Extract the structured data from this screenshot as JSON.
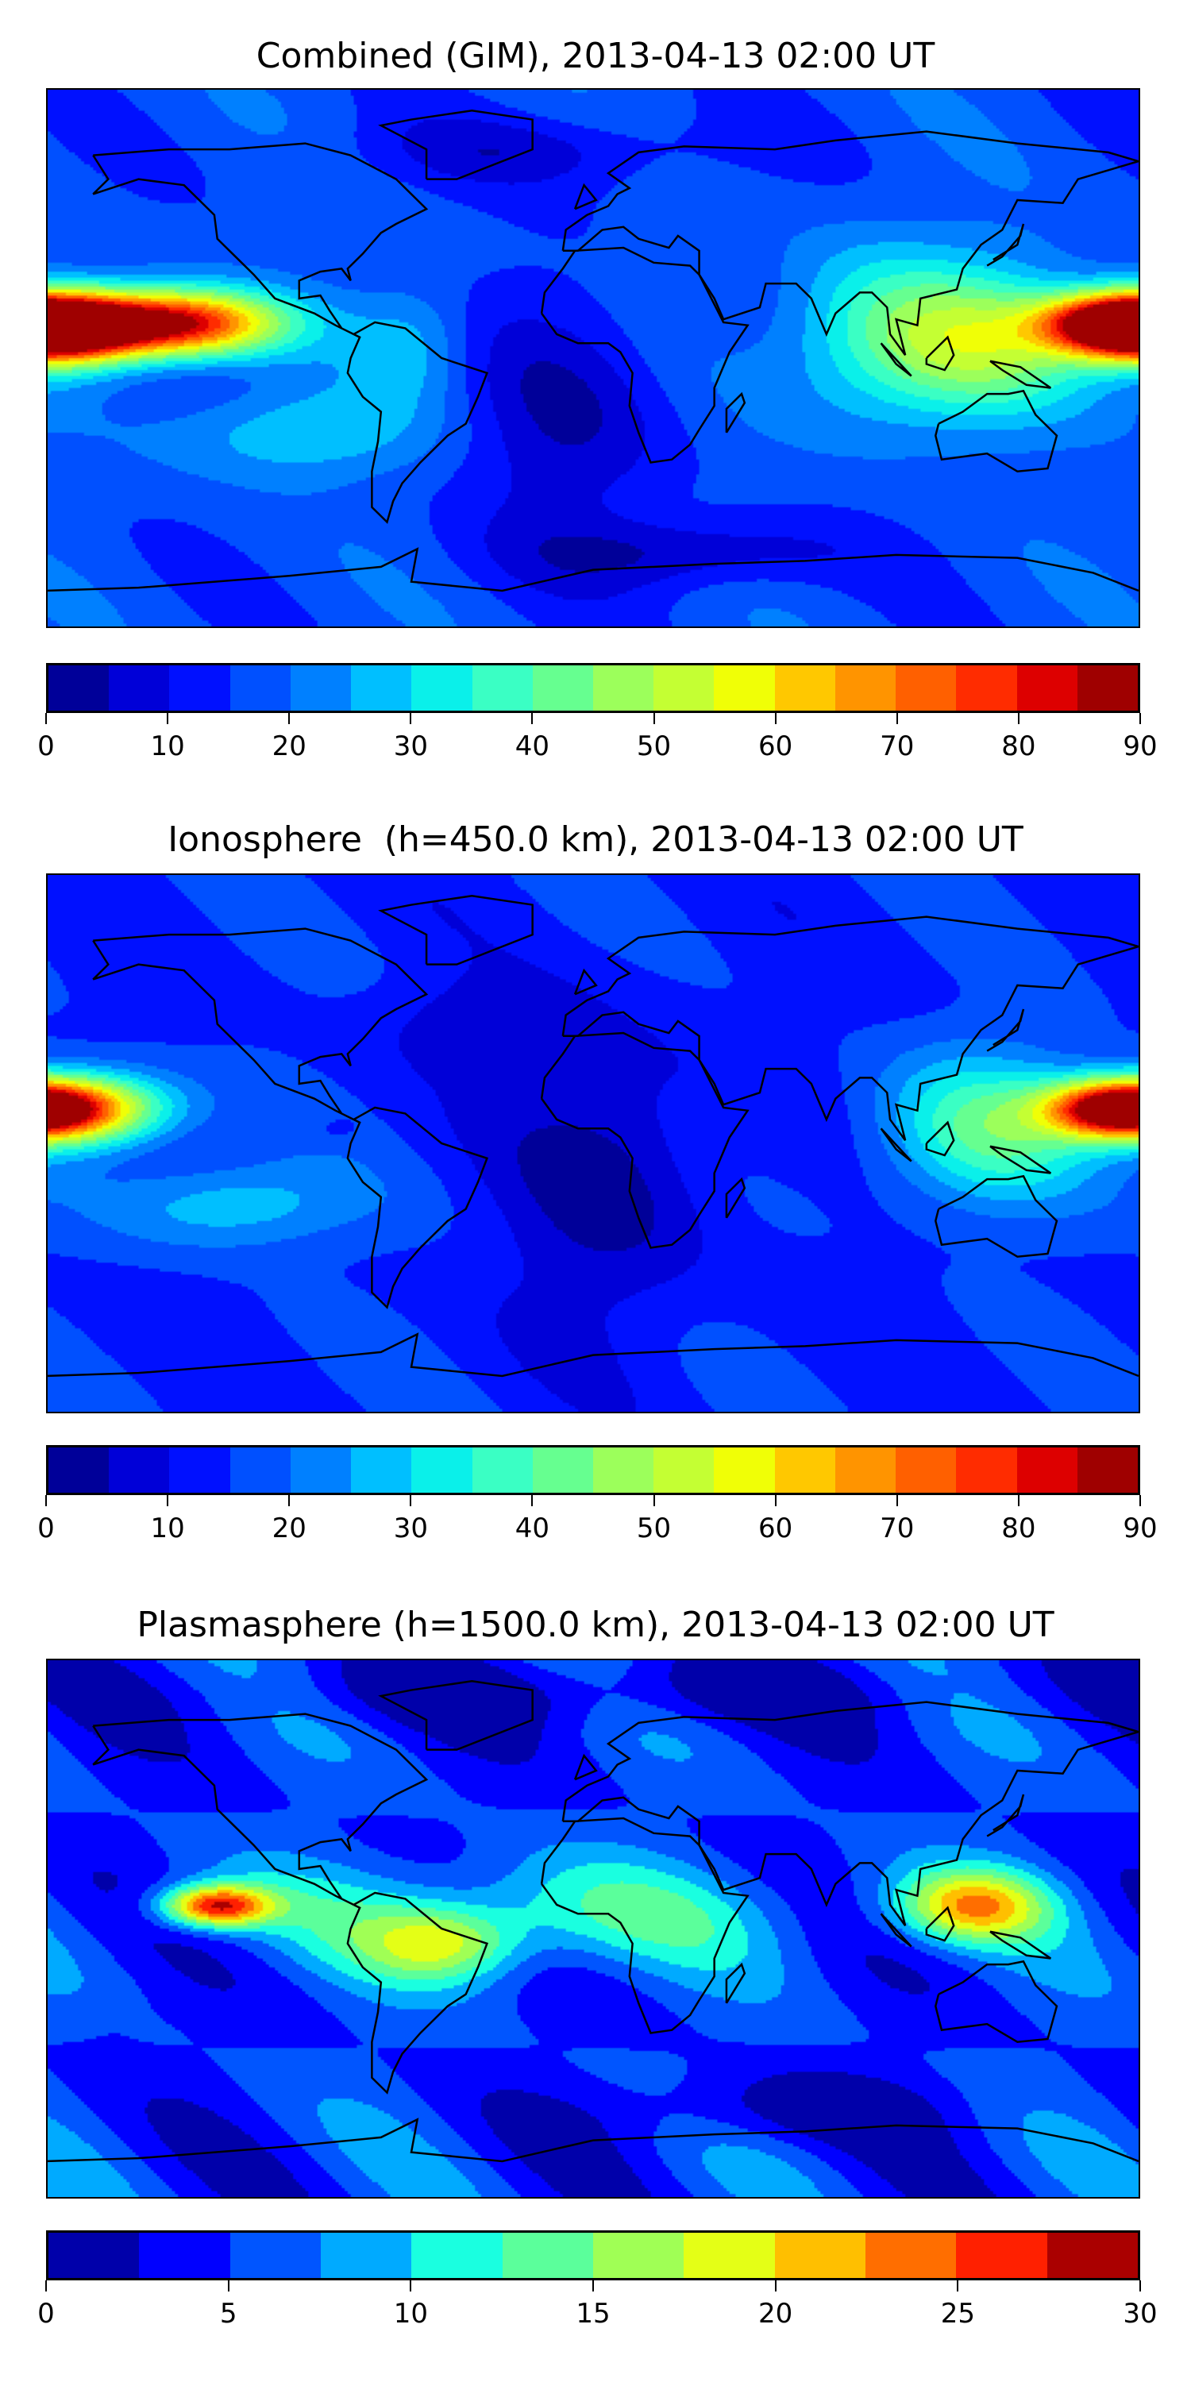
{
  "chart_data": [
    {
      "type": "heatmap",
      "subtype": "filled-contour world map (equirectangular)",
      "title": "Combined (GIM), 2013-04-13 02:00 UT",
      "xlim": [
        -180,
        180
      ],
      "ylim": [
        -90,
        90
      ],
      "colorbar": {
        "min": 0,
        "max": 90,
        "step": 5,
        "ticks": [
          "0",
          "10",
          "20",
          "30",
          "40",
          "50",
          "60",
          "70",
          "80",
          "90"
        ],
        "colors": [
          "#000099",
          "#0000d8",
          "#0010ff",
          "#0050ff",
          "#0080ff",
          "#00bfff",
          "#0af0ea",
          "#3affc4",
          "#66ff90",
          "#9cff5b",
          "#c4ff33",
          "#f0ff06",
          "#ffc800",
          "#ff9400",
          "#ff6000",
          "#ff2c00",
          "#dd0000",
          "#9f0000"
        ]
      },
      "base_value": 17,
      "features": [
        {
          "lon": -140,
          "lat": 12,
          "value": 88,
          "lon_spread": 35,
          "lat_spread": 11
        },
        {
          "lon": -175,
          "lat": 10,
          "value": 70,
          "lon_spread": 25,
          "lat_spread": 12
        },
        {
          "lon": 172,
          "lat": 12,
          "value": 82,
          "lon_spread": 25,
          "lat_spread": 10
        },
        {
          "lon": 125,
          "lat": 5,
          "value": 48,
          "lon_spread": 35,
          "lat_spread": 25
        },
        {
          "lon": 90,
          "lat": 10,
          "value": 32,
          "lon_spread": 30,
          "lat_spread": 30
        },
        {
          "lon": -100,
          "lat": -25,
          "value": 30,
          "lon_spread": 40,
          "lat_spread": 15
        },
        {
          "lon": -60,
          "lat": 5,
          "value": 28,
          "lon_spread": 20,
          "lat_spread": 20
        },
        {
          "lon": -10,
          "lat": -20,
          "value": 6,
          "lon_spread": 35,
          "lat_spread": 45
        },
        {
          "lon": 30,
          "lat": -65,
          "value": 5,
          "lon_spread": 50,
          "lat_spread": 12
        },
        {
          "lon": -20,
          "lat": 70,
          "value": 8,
          "lon_spread": 60,
          "lat_spread": 12
        }
      ]
    },
    {
      "type": "heatmap",
      "subtype": "filled-contour world map (equirectangular)",
      "title": "Ionosphere  (h=450.0 km), 2013-04-13 02:00 UT",
      "xlim": [
        -180,
        180
      ],
      "ylim": [
        -90,
        90
      ],
      "colorbar": {
        "min": 0,
        "max": 90,
        "step": 5,
        "ticks": [
          "0",
          "10",
          "20",
          "30",
          "40",
          "50",
          "60",
          "70",
          "80",
          "90"
        ],
        "colors": [
          "#000099",
          "#0000d8",
          "#0010ff",
          "#0050ff",
          "#0080ff",
          "#00bfff",
          "#0af0ea",
          "#3affc4",
          "#66ff90",
          "#9cff5b",
          "#c4ff33",
          "#f0ff06",
          "#ffc800",
          "#ff9400",
          "#ff6000",
          "#ff2c00",
          "#dd0000",
          "#9f0000"
        ]
      },
      "base_value": 14,
      "features": [
        {
          "lon": -170,
          "lat": 12,
          "value": 66,
          "lon_spread": 30,
          "lat_spread": 12
        },
        {
          "lon": 172,
          "lat": 12,
          "value": 74,
          "lon_spread": 22,
          "lat_spread": 9
        },
        {
          "lon": 130,
          "lat": 5,
          "value": 40,
          "lon_spread": 35,
          "lat_spread": 25
        },
        {
          "lon": -120,
          "lat": -20,
          "value": 30,
          "lon_spread": 40,
          "lat_spread": 15
        },
        {
          "lon": -85,
          "lat": 5,
          "value": 10,
          "lon_spread": 8,
          "lat_spread": 5
        },
        {
          "lon": 5,
          "lat": -10,
          "value": 3,
          "lon_spread": 35,
          "lat_spread": 50
        },
        {
          "lon": -40,
          "lat": 40,
          "value": 7,
          "lon_spread": 30,
          "lat_spread": 15
        }
      ]
    },
    {
      "type": "heatmap",
      "subtype": "filled-contour world map (equirectangular)",
      "title": "Plasmasphere (h=1500.0 km), 2013-04-13 02:00 UT",
      "xlim": [
        -180,
        180
      ],
      "ylim": [
        -90,
        90
      ],
      "colorbar": {
        "min": 0,
        "max": 30,
        "step": 2.5,
        "ticks": [
          "0",
          "5",
          "10",
          "15",
          "20",
          "25",
          "30"
        ],
        "colors": [
          "#0000aa",
          "#0000ff",
          "#0055ff",
          "#00aaff",
          "#1affe0",
          "#5bff9b",
          "#a0ff55",
          "#e4ff16",
          "#ffbf00",
          "#ff6e00",
          "#ff2000",
          "#aa0000"
        ]
      },
      "base_value": 5,
      "features": [
        {
          "lon": -20,
          "lat": 5,
          "value": 12,
          "lon_spread": 90,
          "lat_spread": 18
        },
        {
          "lon": -125,
          "lat": 8,
          "value": 27,
          "lon_spread": 18,
          "lat_spread": 7
        },
        {
          "lon": 125,
          "lat": 8,
          "value": 20,
          "lon_spread": 25,
          "lat_spread": 12
        },
        {
          "lon": -50,
          "lat": -5,
          "value": 15,
          "lon_spread": 25,
          "lat_spread": 12
        },
        {
          "lon": 60,
          "lat": -60,
          "value": 1,
          "lon_spread": 60,
          "lat_spread": 12
        },
        {
          "lon": 0,
          "lat": 80,
          "value": 1,
          "lon_spread": 120,
          "lat_spread": 12
        },
        {
          "lon": -160,
          "lat": -30,
          "value": 4,
          "lon_spread": 15,
          "lat_spread": 8
        }
      ]
    }
  ]
}
